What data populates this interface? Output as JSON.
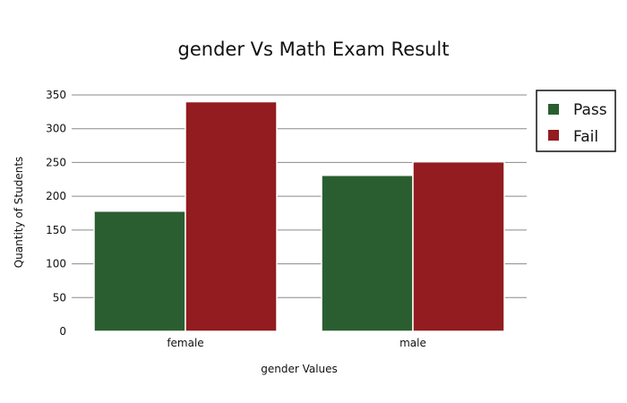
{
  "chart_data": {
    "type": "bar",
    "title": "gender Vs Math Exam Result",
    "xlabel": "gender Values",
    "ylabel": "Quantity of Students",
    "categories": [
      "female",
      "male"
    ],
    "series": [
      {
        "name": "Pass",
        "values": [
          178,
          231
        ],
        "color": "#2a5e30"
      },
      {
        "name": "Fail",
        "values": [
          340,
          251
        ],
        "color": "#921c1f"
      }
    ],
    "ylim": [
      0,
      350
    ],
    "yticks": [
      0,
      50,
      100,
      150,
      200,
      250,
      300,
      350
    ],
    "grid": true,
    "legend_position": "right"
  }
}
